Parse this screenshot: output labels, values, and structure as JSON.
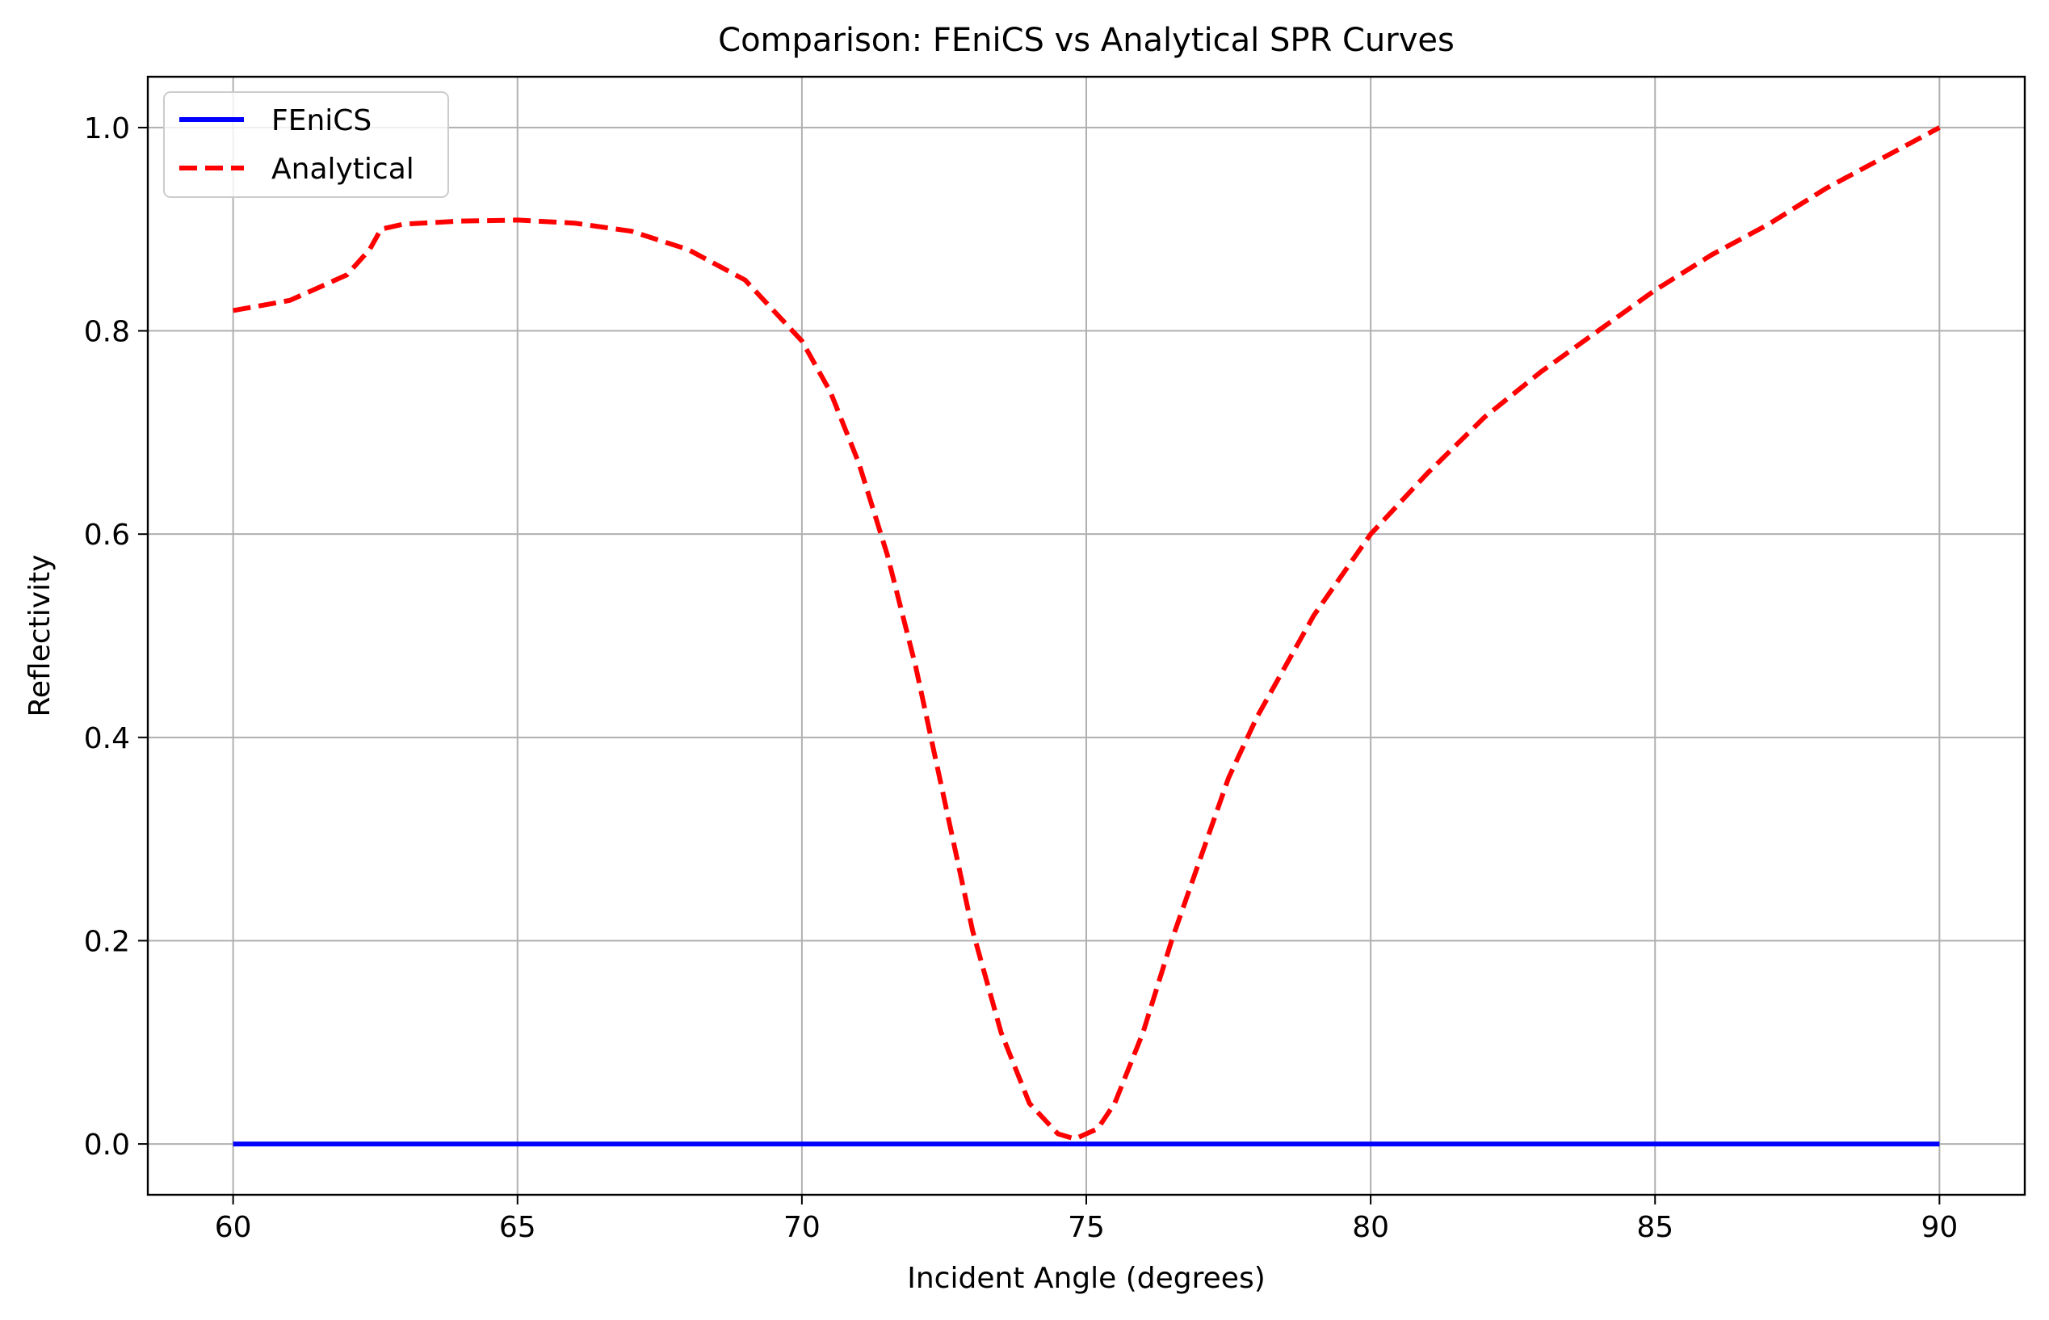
{
  "chart_data": {
    "type": "line",
    "title": "Comparison: FEniCS vs Analytical SPR Curves",
    "xlabel": "Incident Angle (degrees)",
    "ylabel": "Reflectivity",
    "xlim": [
      58.5,
      91.5
    ],
    "ylim": [
      -0.05,
      1.05
    ],
    "xticks": [
      60,
      65,
      70,
      75,
      80,
      85,
      90
    ],
    "yticks": [
      0.0,
      0.2,
      0.4,
      0.6,
      0.8,
      1.0
    ],
    "xtick_labels": [
      "60",
      "65",
      "70",
      "75",
      "80",
      "85",
      "90"
    ],
    "ytick_labels": [
      "0.0",
      "0.2",
      "0.4",
      "0.6",
      "0.8",
      "1.0"
    ],
    "grid": true,
    "legend_position": "top-left",
    "series": [
      {
        "name": "FEniCS",
        "color": "#0000ff",
        "style": "solid",
        "x": [
          60,
          90
        ],
        "y": [
          0.0,
          0.0
        ]
      },
      {
        "name": "Analytical",
        "color": "#ff0000",
        "style": "dashed",
        "x": [
          60,
          61,
          62,
          62.4,
          62.6,
          63,
          64,
          65,
          66,
          67,
          68,
          69,
          70,
          70.5,
          71,
          71.5,
          72,
          72.5,
          73,
          73.5,
          74,
          74.5,
          74.8,
          75.2,
          75.5,
          76,
          76.5,
          77,
          77.5,
          78,
          79,
          80,
          81,
          82,
          83,
          84,
          85,
          86,
          87,
          88,
          89,
          90
        ],
        "y": [
          0.82,
          0.83,
          0.855,
          0.88,
          0.9,
          0.905,
          0.908,
          0.909,
          0.906,
          0.898,
          0.88,
          0.85,
          0.79,
          0.74,
          0.67,
          0.58,
          0.47,
          0.34,
          0.21,
          0.11,
          0.04,
          0.01,
          0.005,
          0.015,
          0.04,
          0.11,
          0.2,
          0.28,
          0.36,
          0.42,
          0.52,
          0.6,
          0.66,
          0.715,
          0.76,
          0.8,
          0.84,
          0.875,
          0.905,
          0.94,
          0.97,
          1.0
        ]
      }
    ]
  }
}
